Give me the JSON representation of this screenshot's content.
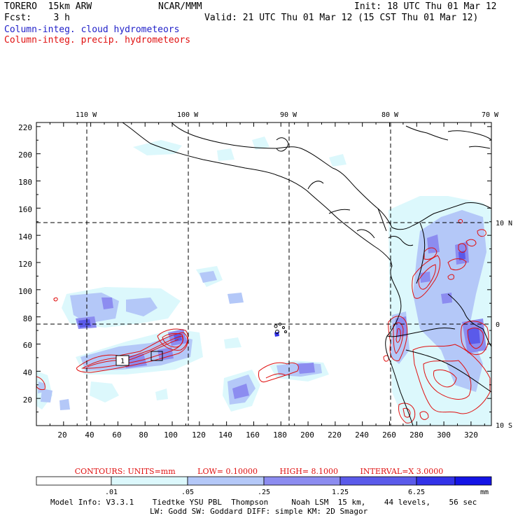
{
  "header": {
    "model": "TORERO  15km ARW",
    "org": "NCAR/MMM",
    "init": "Init: 18 UTC Thu 01 Mar 12",
    "fcst": "Fcst:    3 h",
    "valid": "Valid: 21 UTC Thu 01 Mar 12 (15 CST Thu 01 Mar 12)",
    "field1": "Column-integ. cloud hydrometeors",
    "field2": "Column-integ. precip. hydrometeors"
  },
  "map": {
    "lon_labels": [
      "110 W",
      "100 W",
      "90 W",
      "80 W",
      "70 W"
    ],
    "lat_labels": [
      "10 N",
      "0",
      "10 S"
    ],
    "y_ticks": [
      "220",
      "200",
      "180",
      "160",
      "140",
      "120",
      "100",
      "80",
      "60",
      "40",
      "20"
    ],
    "x_ticks": [
      "20",
      "40",
      "60",
      "80",
      "100",
      "120",
      "140",
      "160",
      "180",
      "200",
      "220",
      "240",
      "260",
      "280",
      "300",
      "320"
    ],
    "contour_label": "1"
  },
  "contours": {
    "units": "CONTOURS:  UNITS=mm",
    "low": "LOW= 0.10000",
    "high": "HIGH=  8.1000",
    "interval": "INTERVAL=X  3.0000"
  },
  "colorbar": {
    "labels": [
      ".01",
      ".05",
      ".25",
      "1.25",
      "6.25"
    ],
    "unit": "mm",
    "colors": [
      "#ffffff",
      "#dcf8fc",
      "#b4c8f8",
      "#8c8cf0",
      "#5a5aea",
      "#3232e8",
      "#1414e6"
    ]
  },
  "footer": {
    "line1": "Model Info: V3.3.1    Tiedtke YSU PBL  Thompson     Noah LSM  15 km,    44 levels,    56 sec",
    "line2": "LW: Godd SW: Goddard DIFF: simple KM: 2D Smagor"
  }
}
